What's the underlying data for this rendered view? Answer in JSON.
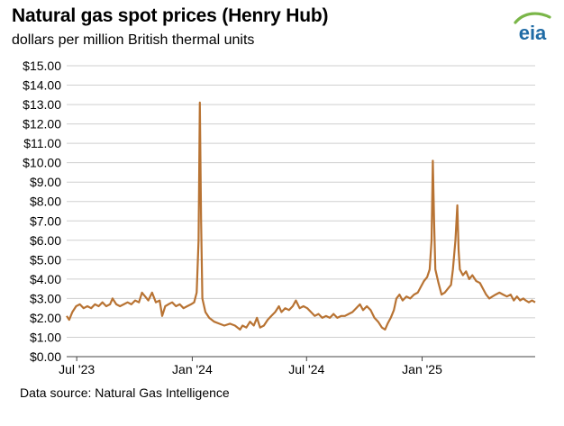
{
  "header": {
    "title": "Natural gas spot prices (Henry Hub)",
    "subtitle": "dollars per million British thermal units",
    "logo_text": "eia"
  },
  "footer": {
    "source": "Data source: Natural Gas Intelligence"
  },
  "colors": {
    "series": "#b87333",
    "grid": "#cfcfcf",
    "logo_blue": "#1f6ba5",
    "logo_green": "#7ab648"
  },
  "chart_data": {
    "type": "line",
    "title": "Natural gas spot prices (Henry Hub)",
    "ylabel": "dollars per million British thermal units",
    "ylim": [
      0,
      15
    ],
    "y_ticks": [
      "$0.00",
      "$1.00",
      "$2.00",
      "$3.00",
      "$4.00",
      "$5.00",
      "$6.00",
      "$7.00",
      "$8.00",
      "$9.00",
      "$10.00",
      "$11.00",
      "$12.00",
      "$13.00",
      "$14.00",
      "$15.00"
    ],
    "x_range": [
      "2023-06-15",
      "2025-06-30"
    ],
    "x_ticks": [
      {
        "label": "Jul '23",
        "date": "2023-07-01"
      },
      {
        "label": "Jan '24",
        "date": "2024-01-01"
      },
      {
        "label": "Jul '24",
        "date": "2024-07-01"
      },
      {
        "label": "Jan '25",
        "date": "2025-01-01"
      }
    ],
    "grid": true,
    "series": [
      {
        "color": "#b87333",
        "points": [
          [
            "2023-06-15",
            2.1
          ],
          [
            "2023-06-19",
            1.9
          ],
          [
            "2023-06-24",
            2.3
          ],
          [
            "2023-06-30",
            2.6
          ],
          [
            "2023-07-06",
            2.7
          ],
          [
            "2023-07-12",
            2.5
          ],
          [
            "2023-07-18",
            2.6
          ],
          [
            "2023-07-24",
            2.5
          ],
          [
            "2023-07-30",
            2.7
          ],
          [
            "2023-08-05",
            2.6
          ],
          [
            "2023-08-11",
            2.8
          ],
          [
            "2023-08-17",
            2.6
          ],
          [
            "2023-08-23",
            2.7
          ],
          [
            "2023-08-27",
            3.0
          ],
          [
            "2023-09-02",
            2.7
          ],
          [
            "2023-09-08",
            2.6
          ],
          [
            "2023-09-14",
            2.7
          ],
          [
            "2023-09-20",
            2.8
          ],
          [
            "2023-09-26",
            2.7
          ],
          [
            "2023-10-02",
            2.9
          ],
          [
            "2023-10-08",
            2.8
          ],
          [
            "2023-10-13",
            3.3
          ],
          [
            "2023-10-18",
            3.1
          ],
          [
            "2023-10-23",
            2.9
          ],
          [
            "2023-10-29",
            3.3
          ],
          [
            "2023-11-04",
            2.8
          ],
          [
            "2023-11-10",
            2.9
          ],
          [
            "2023-11-14",
            2.1
          ],
          [
            "2023-11-19",
            2.6
          ],
          [
            "2023-11-24",
            2.7
          ],
          [
            "2023-11-30",
            2.8
          ],
          [
            "2023-12-06",
            2.6
          ],
          [
            "2023-12-12",
            2.7
          ],
          [
            "2023-12-18",
            2.5
          ],
          [
            "2023-12-24",
            2.6
          ],
          [
            "2023-12-30",
            2.7
          ],
          [
            "2024-01-04",
            2.8
          ],
          [
            "2024-01-08",
            3.3
          ],
          [
            "2024-01-11",
            6.0
          ],
          [
            "2024-01-13",
            13.1
          ],
          [
            "2024-01-15",
            7.0
          ],
          [
            "2024-01-17",
            3.0
          ],
          [
            "2024-01-22",
            2.3
          ],
          [
            "2024-01-28",
            2.0
          ],
          [
            "2024-02-05",
            1.8
          ],
          [
            "2024-02-13",
            1.7
          ],
          [
            "2024-02-21",
            1.6
          ],
          [
            "2024-03-01",
            1.7
          ],
          [
            "2024-03-09",
            1.6
          ],
          [
            "2024-03-17",
            1.4
          ],
          [
            "2024-03-21",
            1.6
          ],
          [
            "2024-03-27",
            1.5
          ],
          [
            "2024-04-02",
            1.8
          ],
          [
            "2024-04-08",
            1.6
          ],
          [
            "2024-04-13",
            2.0
          ],
          [
            "2024-04-18",
            1.5
          ],
          [
            "2024-04-24",
            1.6
          ],
          [
            "2024-04-30",
            1.9
          ],
          [
            "2024-05-06",
            2.1
          ],
          [
            "2024-05-12",
            2.3
          ],
          [
            "2024-05-18",
            2.6
          ],
          [
            "2024-05-22",
            2.3
          ],
          [
            "2024-05-28",
            2.5
          ],
          [
            "2024-06-03",
            2.4
          ],
          [
            "2024-06-09",
            2.6
          ],
          [
            "2024-06-14",
            2.9
          ],
          [
            "2024-06-20",
            2.5
          ],
          [
            "2024-06-26",
            2.6
          ],
          [
            "2024-07-02",
            2.5
          ],
          [
            "2024-07-08",
            2.3
          ],
          [
            "2024-07-14",
            2.1
          ],
          [
            "2024-07-20",
            2.2
          ],
          [
            "2024-07-26",
            2.0
          ],
          [
            "2024-08-01",
            2.1
          ],
          [
            "2024-08-07",
            2.0
          ],
          [
            "2024-08-13",
            2.2
          ],
          [
            "2024-08-19",
            2.0
          ],
          [
            "2024-08-25",
            2.1
          ],
          [
            "2024-08-31",
            2.1
          ],
          [
            "2024-09-06",
            2.2
          ],
          [
            "2024-09-12",
            2.3
          ],
          [
            "2024-09-18",
            2.5
          ],
          [
            "2024-09-24",
            2.7
          ],
          [
            "2024-09-29",
            2.4
          ],
          [
            "2024-10-05",
            2.6
          ],
          [
            "2024-10-11",
            2.4
          ],
          [
            "2024-10-17",
            2.0
          ],
          [
            "2024-10-23",
            1.8
          ],
          [
            "2024-10-29",
            1.5
          ],
          [
            "2024-11-03",
            1.4
          ],
          [
            "2024-11-07",
            1.7
          ],
          [
            "2024-11-12",
            2.0
          ],
          [
            "2024-11-17",
            2.4
          ],
          [
            "2024-11-21",
            3.0
          ],
          [
            "2024-11-26",
            3.2
          ],
          [
            "2024-12-01",
            2.9
          ],
          [
            "2024-12-07",
            3.1
          ],
          [
            "2024-12-13",
            3.0
          ],
          [
            "2024-12-19",
            3.2
          ],
          [
            "2024-12-25",
            3.3
          ],
          [
            "2024-12-30",
            3.6
          ],
          [
            "2025-01-04",
            3.9
          ],
          [
            "2025-01-09",
            4.1
          ],
          [
            "2025-01-13",
            4.5
          ],
          [
            "2025-01-16",
            6.0
          ],
          [
            "2025-01-18",
            10.1
          ],
          [
            "2025-01-20",
            7.0
          ],
          [
            "2025-01-22",
            4.5
          ],
          [
            "2025-01-27",
            3.8
          ],
          [
            "2025-02-01",
            3.2
          ],
          [
            "2025-02-06",
            3.3
          ],
          [
            "2025-02-11",
            3.5
          ],
          [
            "2025-02-16",
            3.7
          ],
          [
            "2025-02-19",
            4.5
          ],
          [
            "2025-02-23",
            6.0
          ],
          [
            "2025-02-26",
            7.8
          ],
          [
            "2025-02-28",
            5.5
          ],
          [
            "2025-03-02",
            4.5
          ],
          [
            "2025-03-07",
            4.2
          ],
          [
            "2025-03-12",
            4.4
          ],
          [
            "2025-03-17",
            4.0
          ],
          [
            "2025-03-22",
            4.2
          ],
          [
            "2025-03-28",
            3.9
          ],
          [
            "2025-04-03",
            3.8
          ],
          [
            "2025-04-08",
            3.5
          ],
          [
            "2025-04-13",
            3.2
          ],
          [
            "2025-04-18",
            3.0
          ],
          [
            "2025-04-23",
            3.1
          ],
          [
            "2025-04-28",
            3.2
          ],
          [
            "2025-05-04",
            3.3
          ],
          [
            "2025-05-10",
            3.2
          ],
          [
            "2025-05-16",
            3.1
          ],
          [
            "2025-05-22",
            3.2
          ],
          [
            "2025-05-27",
            2.9
          ],
          [
            "2025-06-01",
            3.1
          ],
          [
            "2025-06-06",
            2.9
          ],
          [
            "2025-06-11",
            3.0
          ],
          [
            "2025-06-15",
            2.9
          ],
          [
            "2025-06-20",
            2.8
          ],
          [
            "2025-06-25",
            2.9
          ],
          [
            "2025-06-30",
            2.8
          ]
        ]
      }
    ]
  }
}
